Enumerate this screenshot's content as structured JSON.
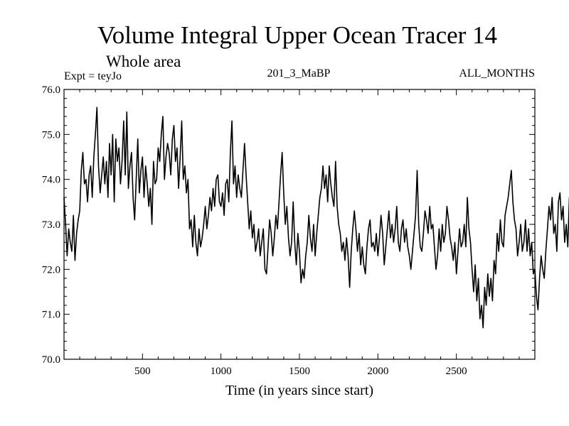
{
  "chart_data": {
    "type": "line",
    "title": "Volume Integral Upper Ocean Tracer 14",
    "subtitle": "Whole area",
    "experiment_label": "Expt = teyJo",
    "run_label": "201_3_MaBP",
    "months_label": "ALL_MONTHS",
    "xlabel": "Time (in years since start)",
    "ylabel": "",
    "xlim": [
      0,
      3000
    ],
    "ylim": [
      70.0,
      76.0
    ],
    "x_ticks": [
      500,
      1000,
      1500,
      2000,
      2500
    ],
    "x_tick_labels": [
      "500",
      "1000",
      "1500",
      "2000",
      "2500"
    ],
    "y_ticks": [
      70.0,
      71.0,
      72.0,
      73.0,
      74.0,
      75.0,
      76.0
    ],
    "y_tick_labels": [
      "70.0",
      "71.0",
      "72.0",
      "73.0",
      "74.0",
      "75.0",
      "76.0"
    ],
    "grid": false,
    "line_color": "#000000",
    "series": [
      {
        "name": "Volume Integral Upper Ocean Tracer 14",
        "x_step": 10,
        "x_start": 0,
        "values": [
          73.6,
          73.0,
          72.3,
          72.9,
          72.6,
          72.4,
          73.2,
          72.2,
          72.8,
          73.1,
          73.3,
          74.2,
          74.6,
          73.9,
          74.0,
          73.5,
          74.1,
          74.3,
          73.6,
          74.5,
          75.0,
          75.6,
          74.3,
          73.7,
          74.1,
          74.5,
          73.9,
          74.4,
          73.6,
          74.8,
          74.1,
          75.0,
          73.5,
          74.9,
          74.4,
          74.7,
          73.9,
          74.4,
          75.3,
          74.1,
          75.5,
          73.8,
          74.3,
          74.6,
          73.6,
          73.1,
          74.0,
          74.9,
          73.7,
          74.2,
          74.5,
          73.6,
          74.3,
          73.9,
          73.4,
          73.8,
          73.0,
          74.4,
          73.9,
          74.0,
          74.7,
          74.4,
          75.0,
          75.4,
          74.0,
          74.5,
          74.8,
          74.6,
          74.1,
          74.9,
          75.2,
          74.4,
          74.7,
          73.8,
          74.5,
          75.3,
          74.0,
          74.3,
          73.7,
          74.0,
          72.9,
          73.1,
          72.5,
          73.2,
          72.6,
          72.3,
          72.9,
          72.5,
          72.7,
          73.0,
          73.4,
          72.9,
          73.2,
          73.6,
          73.3,
          73.8,
          73.4,
          74.0,
          74.1,
          73.5,
          73.4,
          73.7,
          73.2,
          73.9,
          74.0,
          73.5,
          74.6,
          75.3,
          73.9,
          74.3,
          73.6,
          74.1,
          73.8,
          73.6,
          74.2,
          74.8,
          74.1,
          73.5,
          72.9,
          73.3,
          72.7,
          73.0,
          72.4,
          72.6,
          72.9,
          72.3,
          72.6,
          72.9,
          72.0,
          71.9,
          72.5,
          73.1,
          72.8,
          72.3,
          72.7,
          73.2,
          72.9,
          73.5,
          74.1,
          74.6,
          73.7,
          73.0,
          73.4,
          72.7,
          72.3,
          72.6,
          73.5,
          72.6,
          72.1,
          72.8,
          72.4,
          71.7,
          72.0,
          71.8,
          72.3,
          72.6,
          73.2,
          72.7,
          72.4,
          73.0,
          72.3,
          72.8,
          73.2,
          73.6,
          73.8,
          74.3,
          73.8,
          74.1,
          73.5,
          74.3,
          73.9,
          73.6,
          73.4,
          74.4,
          73.4,
          73.0,
          72.8,
          72.4,
          72.6,
          72.2,
          72.7,
          72.3,
          71.6,
          72.4,
          72.9,
          73.3,
          72.9,
          72.4,
          72.8,
          72.1,
          72.5,
          72.1,
          71.9,
          72.5,
          72.9,
          73.1,
          72.5,
          72.6,
          72.4,
          72.8,
          72.3,
          72.7,
          73.2,
          72.8,
          72.1,
          72.5,
          72.9,
          73.3,
          72.7,
          73.0,
          72.6,
          72.9,
          73.4,
          72.6,
          72.4,
          72.9,
          73.1,
          72.6,
          72.9,
          72.5,
          72.3,
          72.0,
          72.4,
          72.8,
          73.2,
          74.2,
          73.0,
          72.5,
          72.4,
          72.8,
          73.3,
          73.1,
          72.8,
          73.4,
          72.9,
          73.0,
          72.5,
          72.0,
          72.3,
          72.9,
          72.4,
          73.0,
          72.6,
          72.8,
          73.4,
          73.1,
          72.7,
          72.5,
          72.2,
          72.6,
          71.9,
          72.4,
          72.9,
          72.5,
          72.6,
          73.0,
          72.5,
          73.6,
          72.9,
          72.6,
          72.0,
          71.5,
          72.1,
          71.3,
          71.8,
          70.9,
          71.2,
          70.7,
          71.6,
          71.2,
          71.9,
          71.4,
          71.8,
          71.3,
          72.2,
          71.9,
          72.8,
          72.4,
          73.1,
          72.6,
          72.5,
          73.2,
          73.4,
          73.6,
          73.9,
          74.2,
          73.5,
          73.1,
          72.9,
          72.3,
          72.6,
          73.0,
          72.4,
          72.6,
          73.1,
          72.4,
          72.9,
          72.3,
          72.6,
          71.9,
          72.0,
          71.4,
          71.1,
          71.8,
          72.3,
          72.0,
          71.8,
          72.4,
          72.9,
          73.4,
          73.1,
          73.6,
          72.8,
          73.0,
          72.4,
          73.5,
          73.7,
          73.1,
          73.4,
          72.6,
          73.0,
          72.5,
          73.6
        ]
      }
    ]
  }
}
